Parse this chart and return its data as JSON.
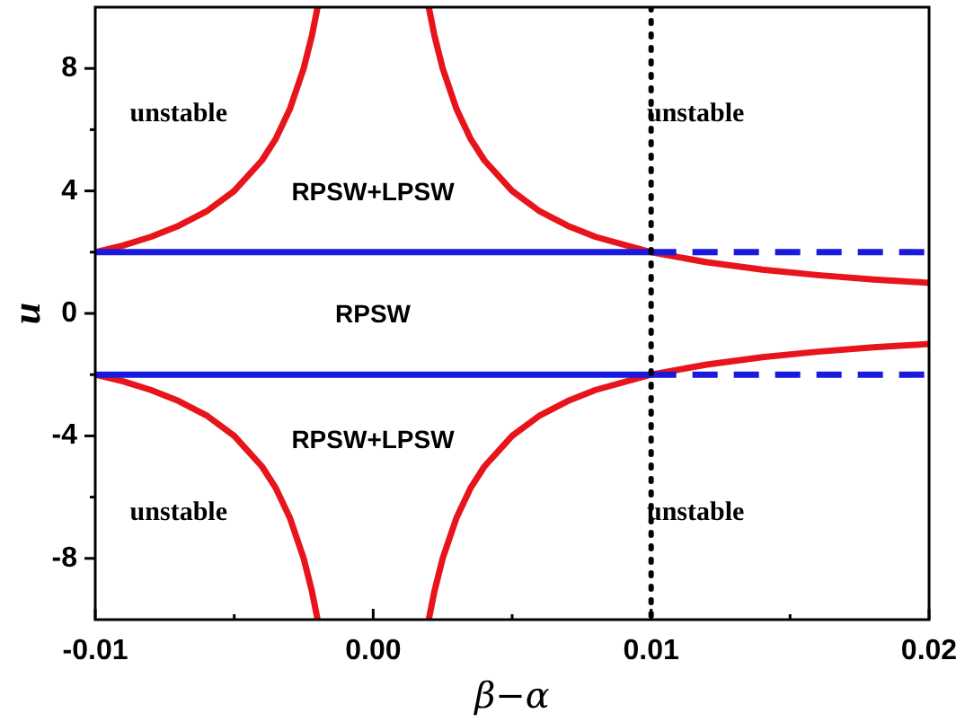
{
  "chart_data": {
    "type": "line",
    "xlabel": "β−α",
    "ylabel": "u",
    "xlim": [
      -0.01,
      0.02
    ],
    "ylim": [
      -10,
      10
    ],
    "xticks": [
      -0.01,
      {
        "value": -0.005,
        "label": null
      },
      {
        "value": 0,
        "label": "0.00"
      },
      {
        "value": 0.005,
        "label": null
      },
      0.01,
      {
        "value": 0.015,
        "label": null
      },
      0.02
    ],
    "yticks": [
      -8,
      {
        "value": -6,
        "label": null
      },
      -4,
      {
        "value": -2,
        "label": null
      },
      0,
      {
        "value": 2,
        "label": null
      },
      4,
      {
        "value": 6,
        "label": null
      },
      8
    ],
    "grid": false,
    "marker": "none",
    "series": [
      {
        "color": "#e8141c",
        "x": [
          -0.01,
          -0.009,
          -0.008,
          -0.007,
          -0.006,
          -0.005,
          -0.004,
          -0.0035,
          -0.003,
          -0.0025,
          -0.0022,
          -0.002
        ],
        "values": [
          2,
          2.22,
          2.5,
          2.86,
          3.33,
          4,
          5,
          5.71,
          6.67,
          8,
          9.09,
          10
        ]
      },
      {
        "color": "#e8141c",
        "x": [
          0.002,
          0.0022,
          0.0025,
          0.003,
          0.0035,
          0.004,
          0.005,
          0.006,
          0.007,
          0.008,
          0.01,
          0.012,
          0.014,
          0.016,
          0.018,
          0.02
        ],
        "values": [
          10,
          9.09,
          8,
          6.67,
          5.71,
          5,
          4,
          3.33,
          2.86,
          2.5,
          2,
          1.67,
          1.43,
          1.25,
          1.11,
          1
        ]
      },
      {
        "color": "#e8141c",
        "x": [
          -0.01,
          -0.009,
          -0.008,
          -0.007,
          -0.006,
          -0.005,
          -0.004,
          -0.0035,
          -0.003,
          -0.0025,
          -0.0022,
          -0.002
        ],
        "values": [
          -2,
          -2.22,
          -2.5,
          -2.86,
          -3.33,
          -4,
          -5,
          -5.71,
          -6.67,
          -8,
          -9.09,
          -10
        ]
      },
      {
        "color": "#e8141c",
        "x": [
          0.002,
          0.0022,
          0.0025,
          0.003,
          0.0035,
          0.004,
          0.005,
          0.006,
          0.007,
          0.008,
          0.01,
          0.012,
          0.014,
          0.016,
          0.018,
          0.02
        ],
        "values": [
          -10,
          -9.09,
          -8,
          -6.67,
          -5.71,
          -5,
          -4,
          -3.33,
          -2.86,
          -2.5,
          -2,
          -1.67,
          -1.43,
          -1.25,
          -1.11,
          -1
        ]
      },
      {
        "color": "#1a1adc",
        "line_style": "solid",
        "x": [
          -0.01,
          0.01
        ],
        "values": [
          2,
          2
        ]
      },
      {
        "color": "#1a1adc",
        "line_style": "dashed",
        "x": [
          0.01,
          0.02
        ],
        "values": [
          2,
          2
        ]
      },
      {
        "color": "#1a1adc",
        "line_style": "solid",
        "x": [
          -0.01,
          0.01
        ],
        "values": [
          -2,
          -2
        ]
      },
      {
        "color": "#1a1adc",
        "line_style": "dashed",
        "x": [
          0.01,
          0.02
        ],
        "values": [
          -2,
          -2
        ]
      }
    ],
    "ref_lines": [
      {
        "axis": "x",
        "value": 0.01,
        "color": "#000000",
        "line_style": "dotted"
      }
    ],
    "annotations": [
      "unstable",
      "RPSW+LPSW",
      "unstable",
      "RPSW",
      "RPSW+LPSW",
      "unstable",
      "unstable"
    ]
  }
}
